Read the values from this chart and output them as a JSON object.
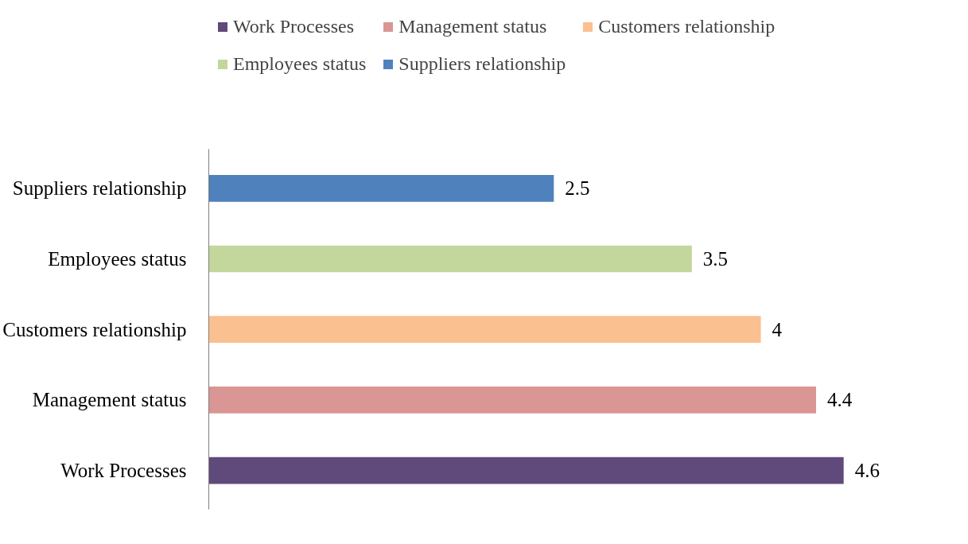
{
  "chart_data": {
    "type": "bar",
    "orientation": "horizontal",
    "stacked": true,
    "categories": [
      "Suppliers relationship",
      "Employees status",
      "Customers relationship",
      "Management status",
      "Work Processes"
    ],
    "series": [
      {
        "name": "Work Processes",
        "color": "#604a7b",
        "values": [
          null,
          null,
          null,
          null,
          4.6
        ]
      },
      {
        "name": "Management status",
        "color": "#d99694",
        "values": [
          null,
          null,
          null,
          4.4,
          null
        ]
      },
      {
        "name": "Customers relationship",
        "color": "#fac090",
        "values": [
          null,
          null,
          4,
          null,
          null
        ]
      },
      {
        "name": "Employees status",
        "color": "#c3d69b",
        "values": [
          null,
          3.5,
          null,
          null,
          null
        ]
      },
      {
        "name": "Suppliers relationship",
        "color": "#4f81bd",
        "values": [
          2.5,
          null,
          null,
          null,
          null
        ]
      }
    ],
    "data_labels": true,
    "legend": "top",
    "grid": false,
    "tick_labels": "y"
  }
}
